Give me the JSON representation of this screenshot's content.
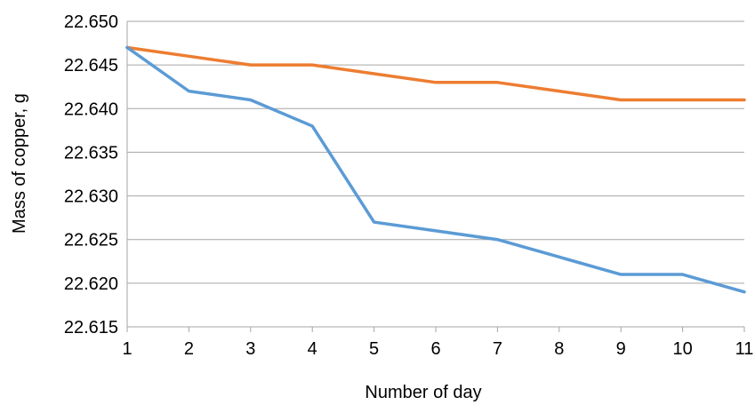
{
  "chart_data": {
    "type": "line",
    "xlabel": "Number of day",
    "ylabel": "Mass of copper, g",
    "x": [
      1,
      2,
      3,
      4,
      5,
      6,
      7,
      8,
      9,
      10,
      11
    ],
    "ylim": [
      22.615,
      22.65
    ],
    "ytick_labels": [
      "22.650",
      "22.645",
      "22.640",
      "22.635",
      "22.630",
      "22.625",
      "22.620",
      "22.615"
    ],
    "xtick_labels": [
      "1",
      "2",
      "3",
      "4",
      "5",
      "6",
      "7",
      "8",
      "9",
      "10",
      "11"
    ],
    "grid": "horizontal",
    "legend": "none",
    "series": [
      {
        "color": "#ed7d31",
        "values": [
          22.647,
          22.646,
          22.645,
          22.645,
          22.644,
          22.643,
          22.643,
          22.642,
          22.641,
          22.641,
          22.641
        ]
      },
      {
        "color": "#5b9bd5",
        "values": [
          22.647,
          22.642,
          22.641,
          22.638,
          22.627,
          22.626,
          22.625,
          22.623,
          22.621,
          22.621,
          22.619
        ]
      }
    ]
  }
}
